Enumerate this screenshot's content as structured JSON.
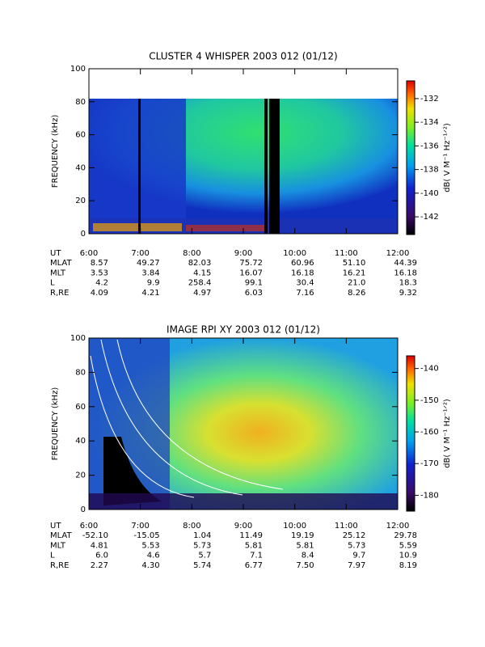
{
  "chart_data": [
    {
      "type": "spectrogram",
      "title": "CLUSTER 4 WHISPER 2003 012 (01/12)",
      "y_label": "FREQUENCY (kHz)",
      "ylim": [
        0,
        100
      ],
      "yticks": [
        0,
        20,
        40,
        60,
        80,
        100
      ],
      "categories": [
        "6:00",
        "7:00",
        "8:00",
        "9:00",
        "10:00",
        "11:00",
        "12:00"
      ],
      "colorbar": {
        "label": "dB( V M⁻¹ Hz⁻¹ᐟ²)",
        "lim": [
          -143.5,
          -130.5
        ],
        "ticks": [
          -132,
          -134,
          -136,
          -138,
          -140,
          -142
        ]
      },
      "ephemeris": [
        {
          "name": "UT"
        },
        {
          "name": "MLAT",
          "values": [
            "8.57",
            "49.27",
            "82.03",
            "75.72",
            "60.96",
            "51.10",
            "44.39"
          ]
        },
        {
          "name": "MLT",
          "values": [
            "3.53",
            "3.84",
            "4.15",
            "16.07",
            "16.18",
            "16.21",
            "16.18"
          ]
        },
        {
          "name": "L",
          "values": [
            "4.2",
            "9.9",
            "258.4",
            "99.1",
            "30.4",
            "21.0",
            "18.3"
          ]
        },
        {
          "name": "R,RE",
          "values": [
            "4.09",
            "4.21",
            "4.97",
            "6.03",
            "7.16",
            "8.26",
            "9.32"
          ]
        }
      ]
    },
    {
      "type": "spectrogram",
      "title": "IMAGE RPI XY 2003 012 (01/12)",
      "y_label": "FREQUENCY (kHz)",
      "ylim": [
        0,
        100
      ],
      "yticks": [
        0,
        20,
        40,
        60,
        80,
        100
      ],
      "categories": [
        "6:00",
        "7:00",
        "8:00",
        "9:00",
        "10:00",
        "11:00",
        "12:00"
      ],
      "colorbar": {
        "label": "dB( V M⁻¹ Hz⁻¹ᐟ²)",
        "lim": [
          -185,
          -136
        ],
        "ticks": [
          -140,
          -150,
          -160,
          -170,
          -180
        ]
      },
      "ephemeris": [
        {
          "name": "UT"
        },
        {
          "name": "MLAT",
          "values": [
            "-52.10",
            "-15.05",
            "1.04",
            "11.49",
            "19.19",
            "25.12",
            "29.78"
          ]
        },
        {
          "name": "MLT",
          "values": [
            "4.81",
            "5.53",
            "5.73",
            "5.81",
            "5.81",
            "5.73",
            "5.59"
          ]
        },
        {
          "name": "L",
          "values": [
            "6.0",
            "4.6",
            "5.7",
            "7.1",
            "8.4",
            "9.7",
            "10.9"
          ]
        },
        {
          "name": "R,RE",
          "values": [
            "2.27",
            "4.30",
            "5.74",
            "6.77",
            "7.50",
            "7.97",
            "8.19"
          ]
        }
      ]
    }
  ]
}
